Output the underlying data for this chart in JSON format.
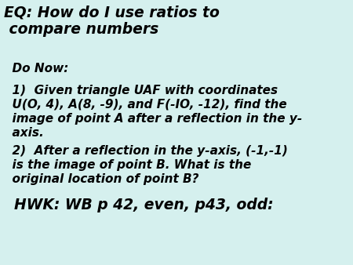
{
  "background_color": "#d5f0ee",
  "title_line1": "EQ: How do I use ratios to",
  "title_line2": " compare numbers",
  "title_fontsize": 13.5,
  "body_lines": [
    {
      "text": "  Do Now:",
      "size": 11.0
    },
    {
      "text": "  1)  Given triangle UAF with coordinates",
      "size": 11.0
    },
    {
      "text": "  U(O, 4), A(8, -9), and F(-IO, -12), find the",
      "size": 11.0
    },
    {
      "text": "  image of point A after a reflection in the y-",
      "size": 11.0
    },
    {
      "text": "  axis.",
      "size": 11.0
    },
    {
      "text": "  2)  After a reflection in the y-axis, (-1,-1)",
      "size": 11.0
    },
    {
      "text": "  is the image of point B. What is the",
      "size": 11.0
    },
    {
      "text": "  original location of point B?",
      "size": 11.0
    }
  ],
  "hwk_text": "  HWK: WB p 42, even, p43, odd:",
  "hwk_fontsize": 13.5,
  "text_color": "#000000",
  "fig_width": 4.5,
  "fig_height": 3.38,
  "dpi": 100
}
